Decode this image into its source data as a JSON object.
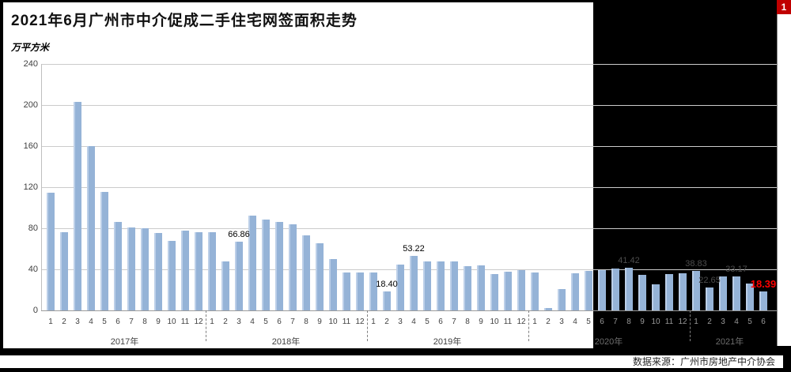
{
  "title": "2021年6月广州市中介促成二手住宅网签面积走势",
  "unit_label": "万平方米",
  "page_badge": "1",
  "source": "数据来源：广州市房地产中介协会",
  "colors": {
    "bar": "#95B3D7",
    "bar_edge": "#BCCFE8",
    "label_black": "#000000",
    "label_dim": "#4D4D4D",
    "label_red": "#FF0000",
    "badge_bg": "#C00000",
    "grid": "#CBCBCB",
    "axis_text": "#404040",
    "month_dark": "#999999",
    "year_dark": "#6E6E6E"
  },
  "chart_data": {
    "type": "bar",
    "title": "2021年6月广州市中介促成二手住宅网签面积走势",
    "ylabel": "万平方米",
    "ylim": [
      0,
      240
    ],
    "yticks": [
      0,
      40,
      80,
      120,
      160,
      200,
      240
    ],
    "grid": true,
    "groups": [
      {
        "year": "2017年",
        "months": [
          1,
          2,
          3,
          4,
          5,
          6,
          7,
          8,
          9,
          10,
          11,
          12
        ],
        "values": [
          114.5,
          75.9,
          203.0,
          160.2,
          115.5,
          86.4,
          81.0,
          79.7,
          75.1,
          67.9,
          77.9,
          75.9
        ]
      },
      {
        "year": "2018年",
        "months": [
          1,
          2,
          3,
          4,
          5,
          6,
          7,
          8,
          9,
          10,
          11,
          12
        ],
        "values": [
          76.4,
          47.5,
          66.86,
          92.4,
          88.2,
          86.2,
          84.1,
          73.3,
          65.5,
          50.3,
          36.9,
          36.9
        ]
      },
      {
        "year": "2019年",
        "months": [
          1,
          2,
          3,
          4,
          5,
          6,
          7,
          8,
          9,
          10,
          11,
          12
        ],
        "values": [
          36.9,
          18.4,
          44.9,
          53.22,
          48.0,
          48.0,
          47.5,
          43.1,
          43.6,
          35.4,
          37.7,
          39.2
        ]
      },
      {
        "year": "2020年",
        "months": [
          1,
          2,
          3,
          4,
          5,
          6,
          7,
          8,
          9,
          10,
          11,
          12
        ],
        "values": [
          36.6,
          2.6,
          20.9,
          35.9,
          38.2,
          39.5,
          41.0,
          41.42,
          34.8,
          25.6,
          35.2,
          36.5
        ]
      },
      {
        "year": "2021年",
        "months": [
          1,
          2,
          3,
          4,
          5,
          6
        ],
        "values": [
          38.83,
          22.65,
          33.0,
          33.17,
          26.3,
          18.39
        ]
      }
    ],
    "value_labels": [
      {
        "year": "2018年",
        "month": 3,
        "text": "66.86",
        "style": "black"
      },
      {
        "year": "2019年",
        "month": 2,
        "text": "18.40",
        "style": "black"
      },
      {
        "year": "2019年",
        "month": 4,
        "text": "53.22",
        "style": "black"
      },
      {
        "year": "2020年",
        "month": 8,
        "text": "41.42",
        "style": "dim"
      },
      {
        "year": "2021年",
        "month": 1,
        "text": "38.83",
        "style": "dim"
      },
      {
        "year": "2021年",
        "month": 2,
        "text": "22.65",
        "style": "dim"
      },
      {
        "year": "2021年",
        "month": 4,
        "text": "33.17",
        "style": "dim"
      },
      {
        "year": "2021年",
        "month": 6,
        "text": "18.39",
        "style": "red"
      }
    ]
  }
}
